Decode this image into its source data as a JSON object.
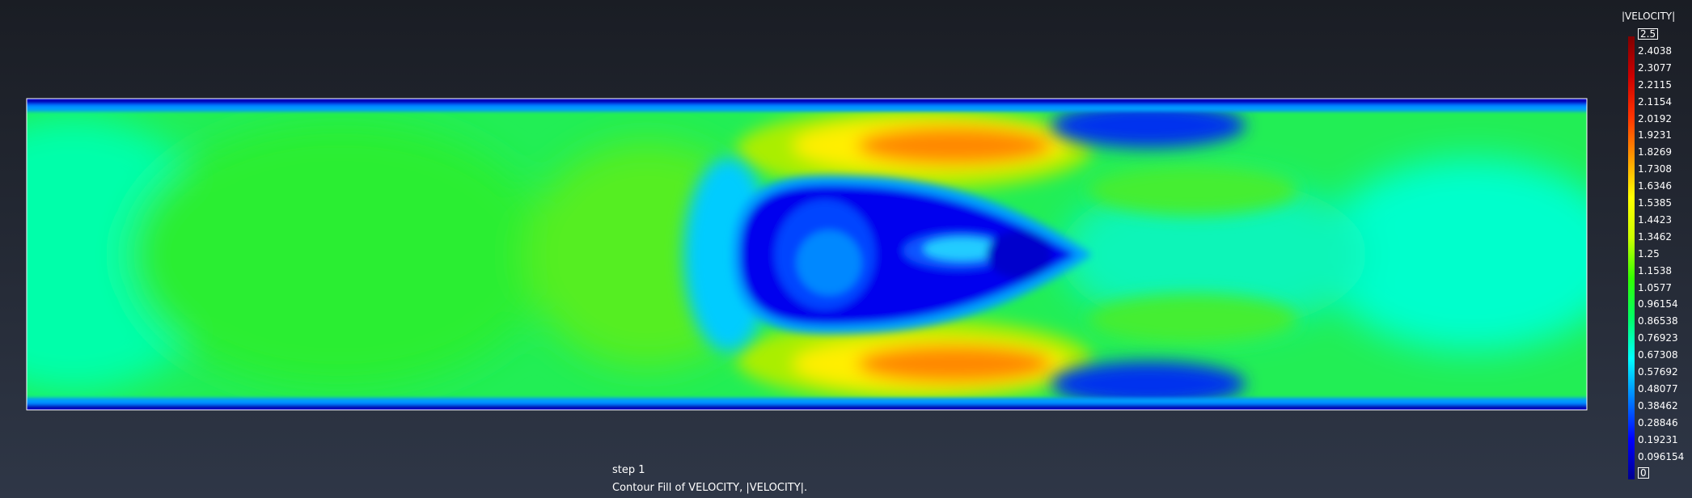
{
  "window": {
    "background_top": "#1a1d24",
    "background_bottom": "#2f3747"
  },
  "viewport": {
    "step_label": "step 1",
    "caption": "Contour Fill of VELOCITY, |VELOCITY|."
  },
  "legend": {
    "title": "|VELOCITY|",
    "ticks": [
      "2.5",
      "2.4038",
      "2.3077",
      "2.2115",
      "2.1154",
      "2.0192",
      "1.9231",
      "1.8269",
      "1.7308",
      "1.6346",
      "1.5385",
      "1.4423",
      "1.3462",
      "1.25",
      "1.1538",
      "1.0577",
      "0.96154",
      "0.86538",
      "0.76923",
      "0.67308",
      "0.57692",
      "0.48077",
      "0.38462",
      "0.28846",
      "0.19231",
      "0.096154",
      "0"
    ],
    "colormap": [
      "#00008f",
      "#0000ff",
      "#0080ff",
      "#00ffff",
      "#00ff66",
      "#33ff00",
      "#ccff00",
      "#ffff00",
      "#ff9900",
      "#ff3300",
      "#cc0000",
      "#800000"
    ]
  },
  "chart_data": {
    "type": "heatmap",
    "field": "|VELOCITY|",
    "range": [
      0,
      2.5
    ],
    "regions": [
      {
        "region": "inlet",
        "value": 1.0
      },
      {
        "region": "channel core upstream",
        "value": 1.2
      },
      {
        "region": "wall boundary layers",
        "value": 0.1
      },
      {
        "region": "obstacle interior",
        "value": 0.3
      },
      {
        "region": "wake cavity",
        "value": 0.1
      },
      {
        "region": "wake recirculation core",
        "value": 0.65
      },
      {
        "region": "upper shear jet",
        "value": 1.85
      },
      {
        "region": "lower shear jet",
        "value": 1.85
      },
      {
        "region": "downstream recovery",
        "value": 0.9
      },
      {
        "region": "outlet",
        "value": 0.9
      }
    ]
  }
}
